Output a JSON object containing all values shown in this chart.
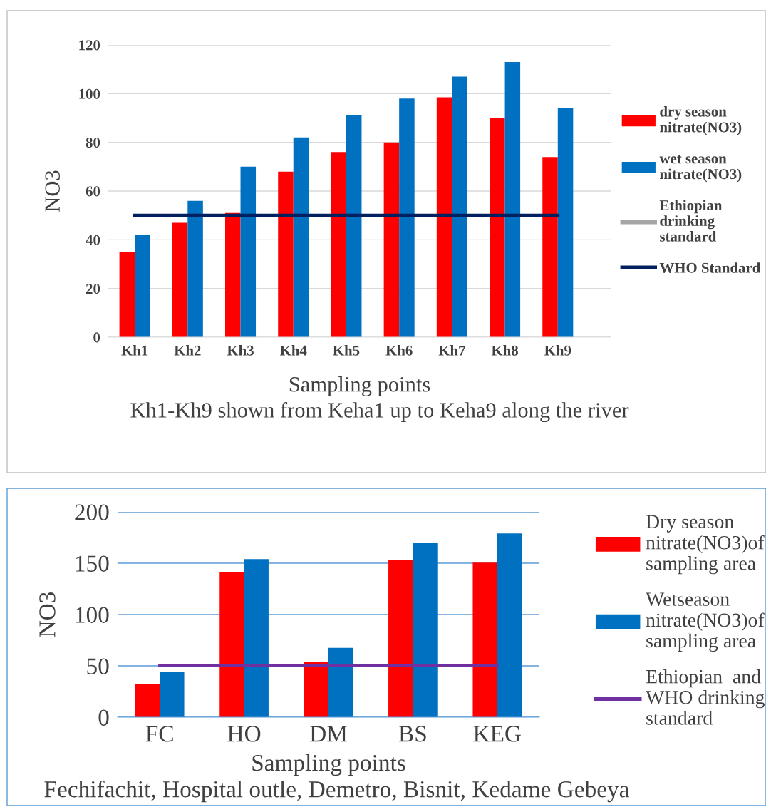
{
  "chart_data": [
    {
      "type": "bar",
      "xlabel": "Sampling points",
      "ylabel": "NO3",
      "categories": [
        "Kh1",
        "Kh2",
        "Kh3",
        "Kh4",
        "Kh5",
        "Kh6",
        "Kh7",
        "Kh8",
        "Kh9"
      ],
      "series": [
        {
          "name": "dry season nitrate(NO3)",
          "color": "#ff0000",
          "values": [
            35,
            47,
            51,
            68,
            76,
            80,
            98.5,
            90,
            74
          ]
        },
        {
          "name": "wet season nitrate(NO3)",
          "color": "#0070c0",
          "values": [
            42,
            56,
            70,
            82,
            91,
            98,
            107,
            113,
            94
          ]
        },
        {
          "name": "Ethiopian drinking standard",
          "type": "line",
          "color": "#a5a5a5",
          "values": [
            null,
            null,
            null,
            null,
            null,
            null,
            null,
            null,
            null
          ]
        },
        {
          "name": "WHO Standard",
          "type": "line",
          "color": "#002060",
          "values": [
            50,
            50,
            50,
            50,
            50,
            50,
            50,
            50,
            50
          ]
        }
      ],
      "ylim": [
        0,
        120
      ],
      "yticks": [
        0,
        20,
        40,
        60,
        80,
        100,
        120
      ],
      "grid": "y",
      "legend": "right",
      "annotations": [
        "Kh1-Kh9 shown from Keha1 up to Keha9 along the river"
      ]
    },
    {
      "type": "bar",
      "xlabel": "Sampling points",
      "ylabel": "NO3",
      "categories": [
        "FC",
        "HO",
        "DM",
        "BS",
        "KEG"
      ],
      "series": [
        {
          "name": "Dry season nitrate(NO3)of sampling area",
          "color": "#ff0000",
          "values": [
            32.5,
            141.5,
            53.5,
            153,
            150.5
          ]
        },
        {
          "name": "Wetseason nitrate(NO3)of sampling area",
          "color": "#0070c0",
          "values": [
            44.5,
            154,
            67.5,
            169.5,
            179
          ]
        },
        {
          "name": "Ethiopian  and WHO drinking standard",
          "type": "line",
          "color": "#7030a0",
          "values": [
            50,
            50,
            50,
            50,
            50
          ]
        }
      ],
      "ylim": [
        0,
        200
      ],
      "yticks": [
        0,
        50,
        100,
        150,
        200
      ],
      "grid": "y",
      "legend": "right",
      "annotations": [
        "Fechifachit, Hospital outle, Demetro, Bisnit, Kedame Gebeya"
      ]
    }
  ]
}
